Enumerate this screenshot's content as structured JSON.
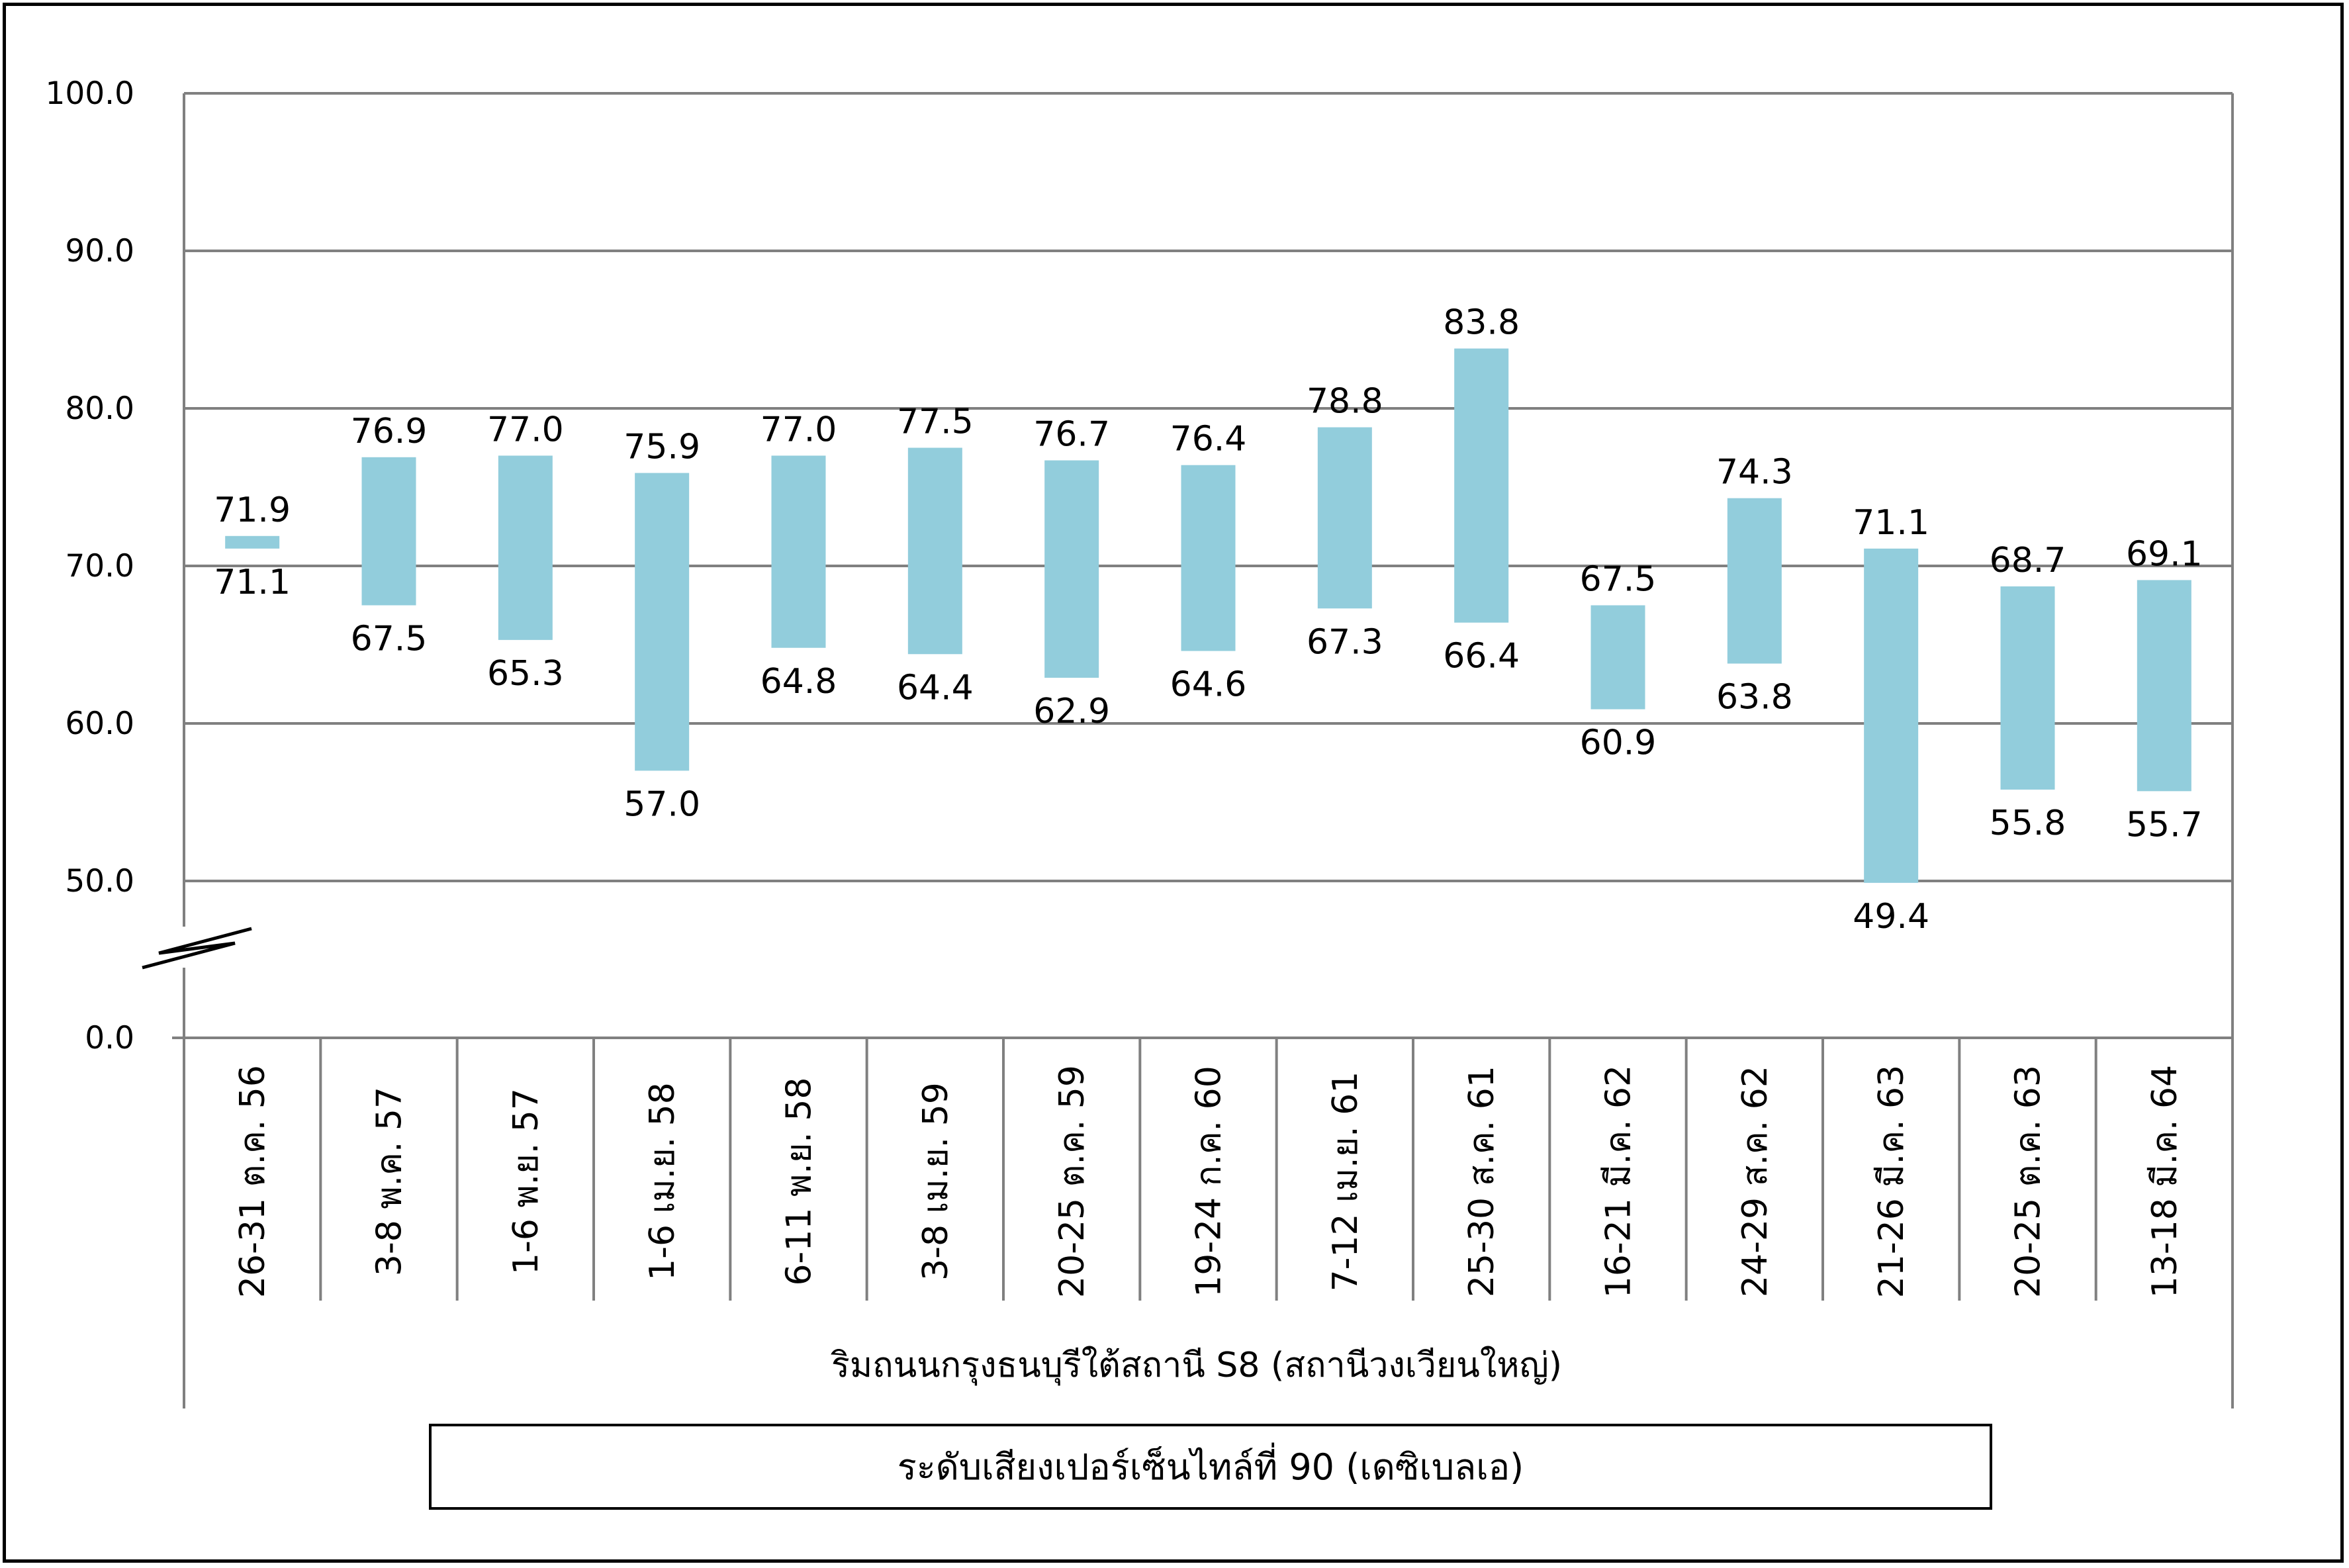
{
  "chart_data": {
    "type": "bar",
    "subtype": "floating-range",
    "categories": [
      "26-31 ต.ค. 56",
      "3-8 พ.ค. 57",
      "1-6 พ.ย. 57",
      "1-6 เม.ย. 58",
      "6-11 พ.ย. 58",
      "3-8 เม.ย. 59",
      "20-25 ต.ค. 59",
      "19-24 ก.ค. 60",
      "7-12 เม.ย. 61",
      "25-30 ส.ค. 61",
      "16-21 มี.ค. 62",
      "24-29 ส.ค. 62",
      "21-26 มี.ค. 63",
      "20-25 ต.ค. 63",
      "13-18 มี.ค. 64"
    ],
    "high": [
      71.9,
      76.9,
      77.0,
      75.9,
      77.0,
      77.5,
      76.7,
      76.4,
      78.8,
      83.8,
      67.5,
      74.3,
      71.1,
      68.7,
      69.1
    ],
    "low": [
      71.1,
      67.5,
      65.3,
      57.0,
      64.8,
      64.4,
      62.9,
      64.6,
      67.3,
      66.4,
      60.9,
      63.8,
      49.4,
      55.8,
      55.7
    ],
    "high_labels": [
      "71.9",
      "76.9",
      "77.0",
      "75.9",
      "77.0",
      "77.5",
      "76.7",
      "76.4",
      "78.8",
      "83.8",
      "67.5",
      "74.3",
      "71.1",
      "68.7",
      "69.1"
    ],
    "low_labels": [
      "71.1",
      "67.5",
      "65.3",
      "57.0",
      "64.8",
      "64.4",
      "62.9",
      "64.6",
      "67.3",
      "66.4",
      "60.9",
      "63.8",
      "49.4",
      "55.8",
      "55.7"
    ],
    "yticks": [
      "100.0",
      "90.0",
      "80.0",
      "70.0",
      "60.0",
      "50.0",
      "0.0"
    ],
    "ytick_values": [
      100,
      90,
      80,
      70,
      60,
      50,
      0
    ],
    "ylim": [
      0,
      100
    ],
    "axis_break": [
      0,
      50
    ],
    "group_label": "ริมถนนกรุงธนบุรีใต้สถานี S8 (สถานีวงเวียนใหญ่)",
    "legend_label": "ระดับเสียงเปอร์เซ็นไทล์ที่ 90 (เดซิเบลเอ)",
    "grid": true,
    "bar_color": "#92cddc"
  }
}
